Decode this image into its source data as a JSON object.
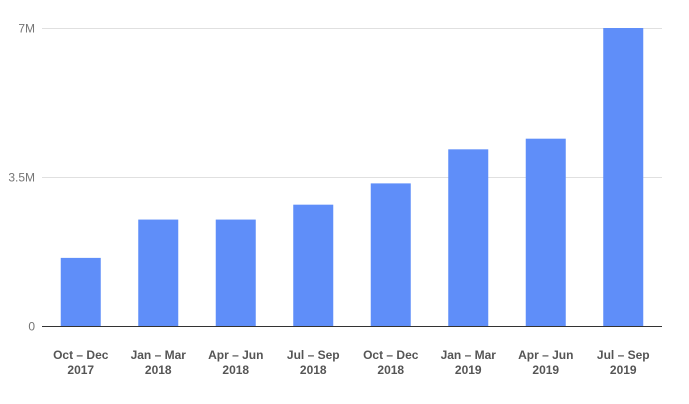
{
  "chart_data": {
    "type": "bar",
    "categories": [
      [
        "Oct – Dec",
        "2017"
      ],
      [
        "Jan – Mar",
        "2018"
      ],
      [
        "Apr – Jun",
        "2018"
      ],
      [
        "Jul – Sep",
        "2018"
      ],
      [
        "Oct – Dec",
        "2018"
      ],
      [
        "Jan – Mar",
        "2019"
      ],
      [
        "Apr – Jun",
        "2019"
      ],
      [
        "Jul – Sep",
        "2019"
      ]
    ],
    "values": [
      1600000,
      2500000,
      2500000,
      2850000,
      3350000,
      4150000,
      4400000,
      7000000
    ],
    "y_ticks": [
      {
        "value": 0,
        "label": "0"
      },
      {
        "value": 3500000,
        "label": "3.5M"
      },
      {
        "value": 7000000,
        "label": "7M"
      }
    ],
    "ylim": [
      0,
      7000000
    ],
    "grid": true,
    "legend": "none",
    "bar_color": "#5f8ef9"
  }
}
